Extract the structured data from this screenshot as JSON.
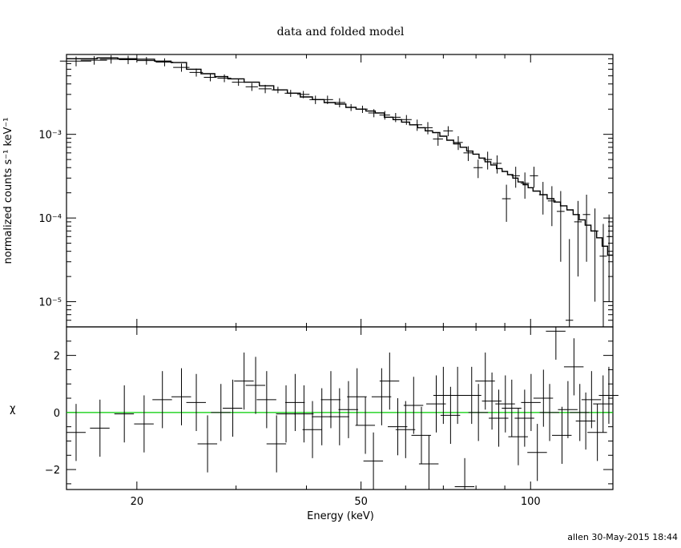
{
  "header": {
    "title": "data and folded model",
    "footer": "allen 30-May-2015 18:44"
  },
  "chart_data": [
    {
      "type": "line",
      "panel": "spectrum",
      "ylabel": "normalized counts s⁻¹ keV⁻¹",
      "yscale": "log",
      "xscale": "log",
      "xlim": [
        15,
        140
      ],
      "ylim": [
        5e-06,
        0.009
      ],
      "ytick_labels": [
        "10⁻⁵",
        "10⁻⁴",
        "10⁻³"
      ],
      "ytick_values": [
        1e-05,
        0.0001,
        0.001
      ],
      "series": [
        {
          "role": "data",
          "points": [
            [
              15.6,
              0.0075,
              1.0,
              0.001
            ],
            [
              16.8,
              0.0077,
              0.9,
              0.0009
            ],
            [
              18.0,
              0.0079,
              0.8,
              0.0009
            ],
            [
              19.3,
              0.0078,
              0.7,
              0.0009
            ],
            [
              20.8,
              0.0076,
              0.8,
              0.0008
            ],
            [
              22.4,
              0.0073,
              0.8,
              0.0008
            ],
            [
              24.0,
              0.0063,
              0.8,
              0.0007
            ],
            [
              25.5,
              0.0055,
              0.7,
              0.0006
            ],
            [
              27.0,
              0.0048,
              0.7,
              0.0005
            ],
            [
              28.6,
              0.0047,
              0.8,
              0.0005
            ],
            [
              30.3,
              0.0042,
              0.8,
              0.0004
            ],
            [
              32.0,
              0.0037,
              0.8,
              0.0004
            ],
            [
              33.8,
              0.0035,
              0.9,
              0.0004
            ],
            [
              35.6,
              0.0034,
              0.9,
              0.0003
            ],
            [
              37.5,
              0.0031,
              0.9,
              0.0003
            ],
            [
              39.5,
              0.003,
              1.0,
              0.0003
            ],
            [
              41.5,
              0.0026,
              1.0,
              0.0003
            ],
            [
              43.6,
              0.0026,
              1.0,
              0.0003
            ],
            [
              45.8,
              0.0024,
              1.1,
              0.0003
            ],
            [
              48.0,
              0.0021,
              1.1,
              0.0002
            ],
            [
              50.3,
              0.002,
              1.1,
              0.0002
            ],
            [
              52.7,
              0.0018,
              1.2,
              0.0002
            ],
            [
              55.1,
              0.0017,
              1.2,
              0.0002
            ],
            [
              57.6,
              0.0016,
              1.2,
              0.0002
            ],
            [
              60.2,
              0.0015,
              1.3,
              0.0002
            ],
            [
              62.9,
              0.0013,
              1.3,
              0.0002
            ],
            [
              65.7,
              0.0012,
              1.3,
              0.0002
            ],
            [
              68.5,
              0.00088,
              1.4,
              0.00015
            ],
            [
              71.4,
              0.0011,
              1.4,
              0.00015
            ],
            [
              74.4,
              0.0008,
              1.4,
              0.00015
            ],
            [
              77.5,
              0.0006,
              1.5,
              0.00012
            ],
            [
              80.7,
              0.0004,
              1.5,
              0.0001
            ],
            [
              83.9,
              0.0005,
              1.5,
              0.00012
            ],
            [
              87.2,
              0.00045,
              1.6,
              0.00011
            ],
            [
              90.6,
              0.00017,
              1.6,
              8e-05
            ],
            [
              94.1,
              0.00032,
              1.6,
              9e-05
            ],
            [
              97.7,
              0.00026,
              1.7,
              9e-05
            ],
            [
              101.4,
              0.00032,
              1.7,
              9e-05
            ],
            [
              105.2,
              0.00019,
              1.7,
              8e-05
            ],
            [
              109.1,
              0.00016,
              1.8,
              8e-05
            ],
            [
              113.1,
              0.00012,
              1.8,
              9e-05
            ],
            [
              117.2,
              6e-06,
              1.8,
              5e-05
            ],
            [
              121.4,
              9e-05,
              1.9,
              7e-05
            ],
            [
              125.7,
              0.00011,
              1.9,
              8e-05
            ],
            [
              130.1,
              7e-05,
              1.9,
              6e-05
            ],
            [
              134.6,
              3.5e-05,
              2.0,
              5e-05
            ],
            [
              137.8,
              6e-05,
              1.3,
              5e-05
            ]
          ]
        },
        {
          "role": "model",
          "steps": [
            [
              15.0,
              0.008
            ],
            [
              17.0,
              0.0082
            ],
            [
              18.5,
              0.008
            ],
            [
              20.0,
              0.0079
            ],
            [
              21.5,
              0.0075
            ],
            [
              23.0,
              0.0072
            ],
            [
              24.5,
              0.006
            ],
            [
              26.0,
              0.0053
            ],
            [
              27.5,
              0.0049
            ],
            [
              29.0,
              0.0046
            ],
            [
              31.0,
              0.0042
            ],
            [
              33.0,
              0.0038
            ],
            [
              35.0,
              0.0034
            ],
            [
              37.0,
              0.0031
            ],
            [
              39.0,
              0.0028
            ],
            [
              41.0,
              0.0026
            ],
            [
              43.0,
              0.0024
            ],
            [
              45.0,
              0.0023
            ],
            [
              47.0,
              0.0021
            ],
            [
              49.0,
              0.002
            ],
            [
              51.0,
              0.0019
            ],
            [
              53.0,
              0.0018
            ],
            [
              55.0,
              0.0016
            ],
            [
              57.0,
              0.0015
            ],
            [
              59.0,
              0.0014
            ],
            [
              61.0,
              0.0013
            ],
            [
              63.0,
              0.0012
            ],
            [
              65.0,
              0.0011
            ],
            [
              67.0,
              0.00105
            ],
            [
              69.0,
              0.00095
            ],
            [
              71.0,
              0.00085
            ],
            [
              73.0,
              0.00077
            ],
            [
              75.0,
              0.0007
            ],
            [
              77.0,
              0.00063
            ],
            [
              79.0,
              0.00058
            ],
            [
              81.0,
              0.00052
            ],
            [
              83.0,
              0.00047
            ],
            [
              85.0,
              0.00043
            ],
            [
              87.0,
              0.00039
            ],
            [
              89.0,
              0.00036
            ],
            [
              91.0,
              0.00033
            ],
            [
              93.0,
              0.0003
            ],
            [
              95.0,
              0.00027
            ],
            [
              97.0,
              0.00025
            ],
            [
              99.0,
              0.00023
            ],
            [
              101.0,
              0.00021
            ],
            [
              104.0,
              0.00019
            ],
            [
              107.0,
              0.00017
            ],
            [
              110.0,
              0.000155
            ],
            [
              113.0,
              0.00014
            ],
            [
              116.0,
              0.000125
            ],
            [
              119.0,
              0.00011
            ],
            [
              122.0,
              9.5e-05
            ],
            [
              125.0,
              8.2e-05
            ],
            [
              128.0,
              7e-05
            ],
            [
              131.0,
              5.8e-05
            ],
            [
              134.0,
              4.6e-05
            ],
            [
              137.0,
              3.6e-05
            ],
            [
              140.0,
              3e-05
            ]
          ]
        }
      ]
    },
    {
      "type": "scatter",
      "panel": "residuals",
      "ylabel": "χ",
      "xlabel": "Energy (keV)",
      "xscale": "log",
      "xlim": [
        15,
        140
      ],
      "ylim": [
        -2.7,
        3.0
      ],
      "ytick_labels": [
        "−2",
        "0",
        "2"
      ],
      "ytick_values": [
        -2,
        0,
        2
      ],
      "xtick_labels": [
        "20",
        "50",
        "100"
      ],
      "xtick_values": [
        20,
        50,
        100
      ],
      "zero_line_color": "#00cc00",
      "points": [
        [
          15.6,
          -0.7,
          1.0
        ],
        [
          17.2,
          -0.55,
          1.0
        ],
        [
          19.0,
          -0.05,
          1.0
        ],
        [
          20.6,
          -0.4,
          1.0
        ],
        [
          22.2,
          0.45,
          1.0
        ],
        [
          24.0,
          0.55,
          1.0
        ],
        [
          25.5,
          0.35,
          1.0
        ],
        [
          26.7,
          -1.1,
          1.0
        ],
        [
          28.2,
          0.0,
          1.0
        ],
        [
          29.6,
          0.15,
          1.0
        ],
        [
          31.0,
          1.1,
          1.0
        ],
        [
          32.5,
          0.95,
          1.0
        ],
        [
          34.0,
          0.45,
          1.0
        ],
        [
          35.4,
          -1.1,
          1.0
        ],
        [
          36.8,
          -0.05,
          1.0
        ],
        [
          38.2,
          0.35,
          1.0
        ],
        [
          39.6,
          -0.05,
          1.0
        ],
        [
          41.0,
          -0.6,
          1.0
        ],
        [
          42.6,
          -0.15,
          1.0
        ],
        [
          44.2,
          0.45,
          1.0
        ],
        [
          45.8,
          -0.15,
          1.0
        ],
        [
          47.5,
          0.1,
          1.0
        ],
        [
          49.2,
          0.55,
          1.0
        ],
        [
          50.9,
          -0.45,
          1.0
        ],
        [
          52.6,
          -1.7,
          1.0
        ],
        [
          54.4,
          0.55,
          1.0
        ],
        [
          56.2,
          1.1,
          1.0
        ],
        [
          58.1,
          -0.5,
          1.0
        ],
        [
          60.0,
          -0.6,
          1.0
        ],
        [
          62.0,
          0.25,
          1.0
        ],
        [
          64.0,
          -0.8,
          1.0
        ],
        [
          66.0,
          -1.8,
          1.0
        ],
        [
          68.0,
          0.3,
          1.0
        ],
        [
          70.0,
          0.6,
          1.0
        ],
        [
          72.1,
          -0.1,
          1.0
        ],
        [
          74.2,
          0.6,
          1.0
        ],
        [
          76.4,
          -2.6,
          1.0
        ],
        [
          78.6,
          0.6,
          1.0
        ],
        [
          80.8,
          0.0,
          1.0
        ],
        [
          83.1,
          1.1,
          1.0
        ],
        [
          85.4,
          0.4,
          1.0
        ],
        [
          87.8,
          -0.2,
          1.0
        ],
        [
          90.2,
          0.3,
          1.0
        ],
        [
          92.6,
          0.15,
          1.0
        ],
        [
          95.1,
          -0.85,
          1.0
        ],
        [
          97.6,
          -0.2,
          1.0
        ],
        [
          100.2,
          0.35,
          1.0
        ],
        [
          102.8,
          -1.4,
          1.0
        ],
        [
          105.4,
          0.5,
          1.0
        ],
        [
          108.1,
          0.0,
          1.0
        ],
        [
          110.9,
          2.85,
          1.0
        ],
        [
          113.7,
          -0.8,
          1.0
        ],
        [
          116.5,
          0.1,
          1.0
        ],
        [
          119.4,
          1.6,
          1.0
        ],
        [
          122.3,
          0.0,
          1.0
        ],
        [
          125.3,
          -0.3,
          1.0
        ],
        [
          128.3,
          0.45,
          1.0
        ],
        [
          131.4,
          -0.7,
          1.0
        ],
        [
          134.5,
          0.3,
          1.0
        ],
        [
          137.7,
          0.6,
          1.0
        ]
      ]
    }
  ]
}
